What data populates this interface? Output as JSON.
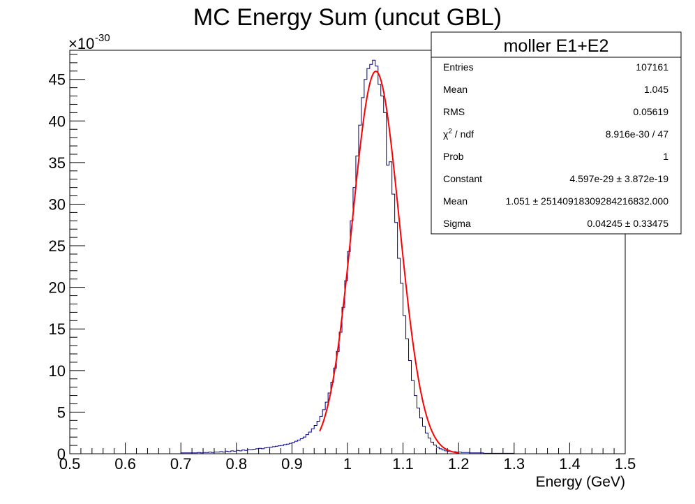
{
  "chart_data": {
    "type": "histogram",
    "title": "MC Energy Sum (uncut GBL)",
    "xlabel": "Energy (GeV)",
    "ylabel": "",
    "y_exponent_base": "×10",
    "y_exponent": "-30",
    "xlim": [
      0.5,
      1.5
    ],
    "ylim": [
      0,
      48.5
    ],
    "x_ticks": [
      0.5,
      0.6,
      0.7,
      0.8,
      0.9,
      1.0,
      1.1,
      1.2,
      1.3,
      1.4,
      1.5
    ],
    "x_tick_labels": [
      "0.5",
      "0.6",
      "0.7",
      "0.8",
      "0.9",
      "1",
      "1.1",
      "1.2",
      "1.3",
      "1.4",
      "1.5"
    ],
    "y_ticks": [
      0,
      5,
      10,
      15,
      20,
      25,
      30,
      35,
      40,
      45
    ],
    "y_tick_labels": [
      "0",
      "5",
      "10",
      "15",
      "20",
      "25",
      "30",
      "35",
      "40",
      "45"
    ],
    "histogram": {
      "bin_width": 0.005,
      "bins": [
        {
          "x0": 0.7,
          "y": 0.1
        },
        {
          "x0": 0.705,
          "y": 0.1
        },
        {
          "x0": 0.71,
          "y": 0.1
        },
        {
          "x0": 0.715,
          "y": 0.1
        },
        {
          "x0": 0.72,
          "y": 0.1
        },
        {
          "x0": 0.725,
          "y": 0.1
        },
        {
          "x0": 0.73,
          "y": 0.15
        },
        {
          "x0": 0.735,
          "y": 0.1
        },
        {
          "x0": 0.74,
          "y": 0.15
        },
        {
          "x0": 0.745,
          "y": 0.15
        },
        {
          "x0": 0.75,
          "y": 0.2
        },
        {
          "x0": 0.755,
          "y": 0.15
        },
        {
          "x0": 0.76,
          "y": 0.2
        },
        {
          "x0": 0.765,
          "y": 0.2
        },
        {
          "x0": 0.77,
          "y": 0.25
        },
        {
          "x0": 0.775,
          "y": 0.2
        },
        {
          "x0": 0.78,
          "y": 0.3
        },
        {
          "x0": 0.785,
          "y": 0.25
        },
        {
          "x0": 0.79,
          "y": 0.35
        },
        {
          "x0": 0.795,
          "y": 0.3
        },
        {
          "x0": 0.8,
          "y": 0.4
        },
        {
          "x0": 0.805,
          "y": 0.35
        },
        {
          "x0": 0.81,
          "y": 0.45
        },
        {
          "x0": 0.815,
          "y": 0.4
        },
        {
          "x0": 0.82,
          "y": 0.5
        },
        {
          "x0": 0.825,
          "y": 0.5
        },
        {
          "x0": 0.83,
          "y": 0.55
        },
        {
          "x0": 0.835,
          "y": 0.6
        },
        {
          "x0": 0.84,
          "y": 0.65
        },
        {
          "x0": 0.845,
          "y": 0.6
        },
        {
          "x0": 0.85,
          "y": 0.7
        },
        {
          "x0": 0.855,
          "y": 0.75
        },
        {
          "x0": 0.86,
          "y": 0.8
        },
        {
          "x0": 0.865,
          "y": 0.85
        },
        {
          "x0": 0.87,
          "y": 0.9
        },
        {
          "x0": 0.875,
          "y": 0.95
        },
        {
          "x0": 0.88,
          "y": 1.0
        },
        {
          "x0": 0.885,
          "y": 1.1
        },
        {
          "x0": 0.89,
          "y": 1.15
        },
        {
          "x0": 0.895,
          "y": 1.25
        },
        {
          "x0": 0.9,
          "y": 1.35
        },
        {
          "x0": 0.905,
          "y": 1.5
        },
        {
          "x0": 0.91,
          "y": 1.65
        },
        {
          "x0": 0.915,
          "y": 1.8
        },
        {
          "x0": 0.92,
          "y": 2.0
        },
        {
          "x0": 0.925,
          "y": 2.3
        },
        {
          "x0": 0.93,
          "y": 2.6
        },
        {
          "x0": 0.935,
          "y": 3.0
        },
        {
          "x0": 0.94,
          "y": 3.4
        },
        {
          "x0": 0.945,
          "y": 3.9
        },
        {
          "x0": 0.95,
          "y": 4.5
        },
        {
          "x0": 0.955,
          "y": 5.3
        },
        {
          "x0": 0.96,
          "y": 6.2
        },
        {
          "x0": 0.965,
          "y": 7.3
        },
        {
          "x0": 0.97,
          "y": 8.6
        },
        {
          "x0": 0.975,
          "y": 10.3
        },
        {
          "x0": 0.98,
          "y": 12.3
        },
        {
          "x0": 0.985,
          "y": 14.6
        },
        {
          "x0": 0.99,
          "y": 17.6
        },
        {
          "x0": 0.995,
          "y": 20.8
        },
        {
          "x0": 1.0,
          "y": 24.3
        },
        {
          "x0": 1.005,
          "y": 28.0
        },
        {
          "x0": 1.01,
          "y": 32.0
        },
        {
          "x0": 1.015,
          "y": 35.8
        },
        {
          "x0": 1.02,
          "y": 39.5
        },
        {
          "x0": 1.025,
          "y": 42.8
        },
        {
          "x0": 1.03,
          "y": 45.0
        },
        {
          "x0": 1.035,
          "y": 46.3
        },
        {
          "x0": 1.04,
          "y": 46.8
        },
        {
          "x0": 1.045,
          "y": 47.3
        },
        {
          "x0": 1.05,
          "y": 46.6
        },
        {
          "x0": 1.055,
          "y": 44.4
        },
        {
          "x0": 1.06,
          "y": 43.0
        },
        {
          "x0": 1.065,
          "y": 41.0
        },
        {
          "x0": 1.07,
          "y": 34.7
        },
        {
          "x0": 1.075,
          "y": 35.1
        },
        {
          "x0": 1.08,
          "y": 31.2
        },
        {
          "x0": 1.085,
          "y": 27.8
        },
        {
          "x0": 1.09,
          "y": 23.5
        },
        {
          "x0": 1.095,
          "y": 20.5
        },
        {
          "x0": 1.1,
          "y": 16.6
        },
        {
          "x0": 1.105,
          "y": 13.8
        },
        {
          "x0": 1.11,
          "y": 11.2
        },
        {
          "x0": 1.115,
          "y": 8.8
        },
        {
          "x0": 1.12,
          "y": 7.0
        },
        {
          "x0": 1.125,
          "y": 5.5
        },
        {
          "x0": 1.13,
          "y": 4.3
        },
        {
          "x0": 1.135,
          "y": 3.3
        },
        {
          "x0": 1.14,
          "y": 2.5
        },
        {
          "x0": 1.145,
          "y": 1.9
        },
        {
          "x0": 1.15,
          "y": 1.4
        },
        {
          "x0": 1.155,
          "y": 1.05
        },
        {
          "x0": 1.16,
          "y": 0.8
        },
        {
          "x0": 1.165,
          "y": 0.6
        },
        {
          "x0": 1.17,
          "y": 0.45
        },
        {
          "x0": 1.175,
          "y": 0.35
        },
        {
          "x0": 1.18,
          "y": 0.3
        },
        {
          "x0": 1.185,
          "y": 0.25
        },
        {
          "x0": 1.19,
          "y": 0.25
        },
        {
          "x0": 1.195,
          "y": 0.2
        },
        {
          "x0": 1.2,
          "y": 0.2
        },
        {
          "x0": 1.205,
          "y": 0.15
        },
        {
          "x0": 1.21,
          "y": 0.15
        },
        {
          "x0": 1.215,
          "y": 0.15
        },
        {
          "x0": 1.22,
          "y": 0.1
        },
        {
          "x0": 1.225,
          "y": 0.1
        },
        {
          "x0": 1.23,
          "y": 0.1
        },
        {
          "x0": 1.235,
          "y": 0.1
        },
        {
          "x0": 1.24,
          "y": 0.1
        },
        {
          "x0": 1.245,
          "y": 0.05
        },
        {
          "x0": 1.25,
          "y": 0.05
        },
        {
          "x0": 1.255,
          "y": 0.05
        },
        {
          "x0": 1.26,
          "y": 0.05
        },
        {
          "x0": 1.265,
          "y": 0.05
        },
        {
          "x0": 1.27,
          "y": 0.05
        },
        {
          "x0": 1.275,
          "y": 0.05
        },
        {
          "x0": 1.28,
          "y": 0.05
        },
        {
          "x0": 1.285,
          "y": 0.05
        },
        {
          "x0": 1.29,
          "y": 0.05
        },
        {
          "x0": 1.295,
          "y": 0.05
        }
      ],
      "color": "#000080"
    },
    "fit": {
      "function": "gaussian",
      "constant": 45.97,
      "mean": 1.051,
      "sigma": 0.04245,
      "range": [
        0.95,
        1.2
      ],
      "color": "#ff0000"
    }
  },
  "stats_box": {
    "title": "moller E1+E2",
    "rows": [
      {
        "label": "Entries",
        "value": "107161"
      },
      {
        "label": "Mean",
        "value": "1.045"
      },
      {
        "label": "RMS",
        "value": "0.05619"
      },
      {
        "label": "chi2",
        "label_chi": "χ",
        "label_sup": "2",
        "label_rest": " / ndf",
        "value": "8.916e-30 / 47"
      },
      {
        "label": "Prob",
        "value": "1"
      },
      {
        "label": "Constant",
        "value": "4.597e-29 ± 3.872e-19"
      },
      {
        "label": "Mean",
        "value": "1.051 ± 25140918309284216832.000"
      },
      {
        "label": "Sigma",
        "value": "0.04245 ± 0.33475"
      }
    ]
  }
}
